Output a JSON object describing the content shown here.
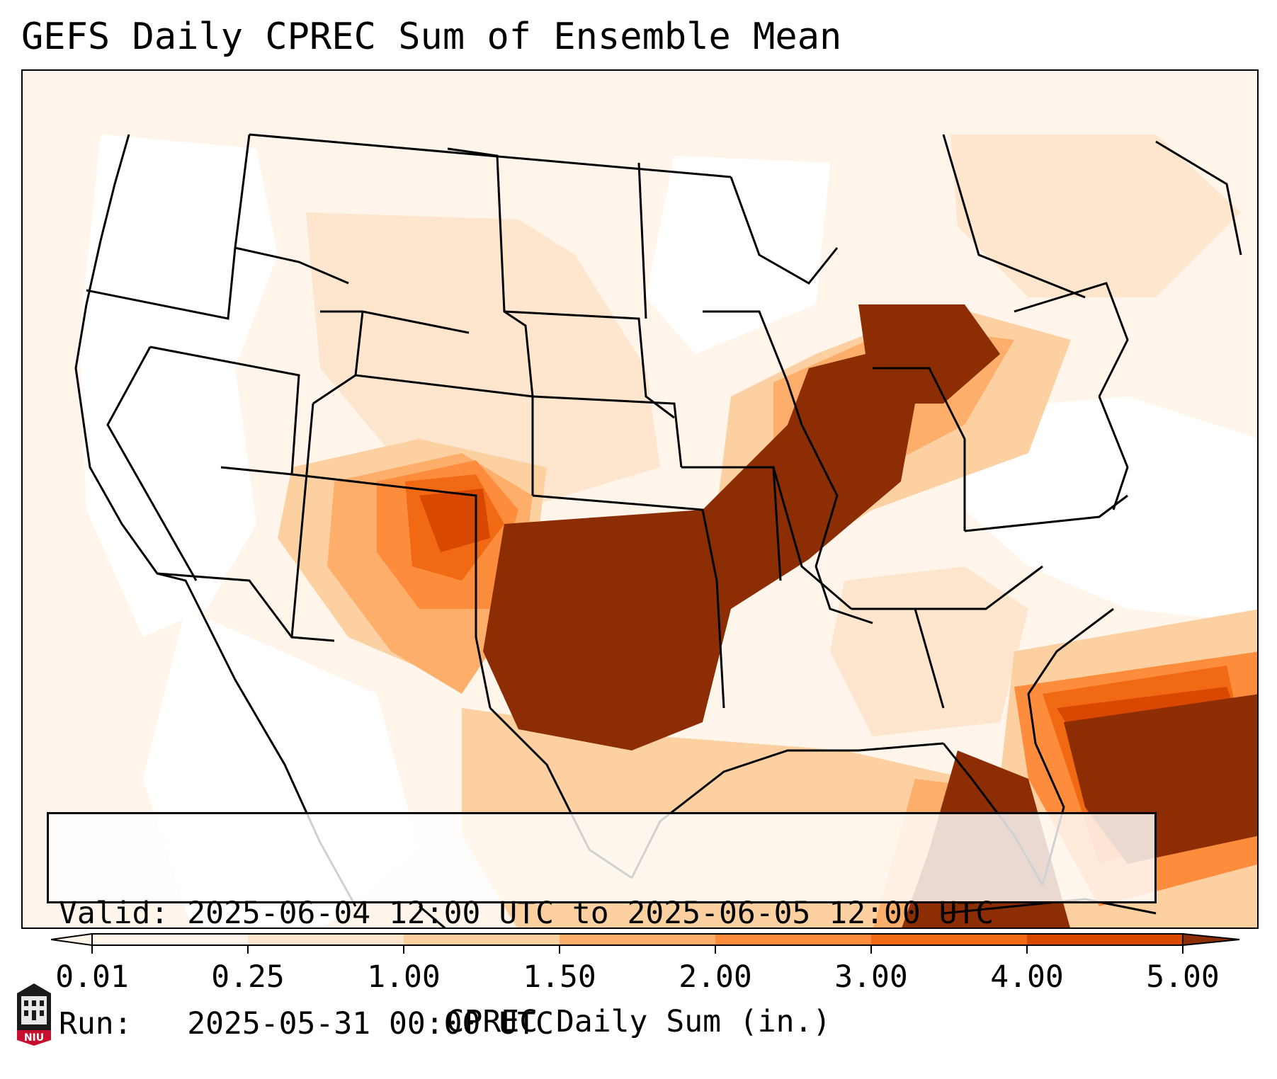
{
  "title": "GEFS Daily CPREC Sum of Ensemble Mean",
  "info": {
    "valid": "Valid: 2025-06-04 12:00 UTC to 2025-06-05 12:00 UTC",
    "run": "Run:   2025-05-31 00:00 UTC"
  },
  "colorbar": {
    "label": "CPREC Daily Sum (in.)",
    "ticks": [
      "0.01",
      "0.25",
      "1.00",
      "1.50",
      "2.00",
      "3.00",
      "4.00",
      "5.00"
    ],
    "colors": [
      "#fff5eb",
      "#fee6ce",
      "#fdd0a2",
      "#fdae6b",
      "#fd8d3c",
      "#f16913",
      "#d94801",
      "#8c2d04"
    ]
  },
  "logo": {
    "text": "NIU",
    "icon": "niu-tower-logo"
  },
  "map_legend_colors": {
    "lowest": "#fff5eb",
    "highest": "#8c2d04",
    "boundaries": "#000000"
  }
}
